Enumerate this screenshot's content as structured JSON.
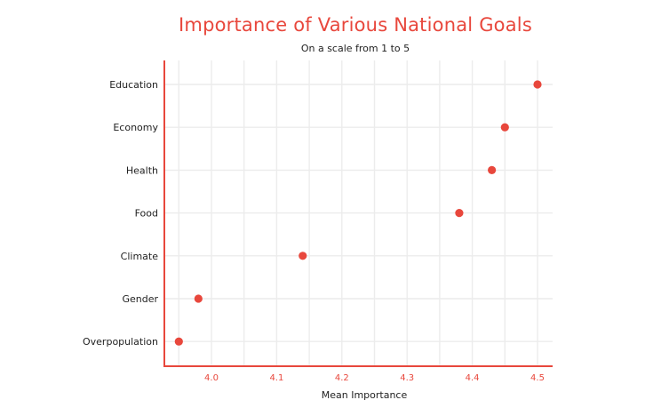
{
  "chart_data": {
    "type": "scatter",
    "title": "Importance of Various National Goals",
    "subtitle": "On a scale from 1 to 5",
    "xlabel": "Mean Importance",
    "ylabel": "",
    "categories": [
      "Education",
      "Economy",
      "Health",
      "Food",
      "Climate",
      "Gender",
      "Overpopulation"
    ],
    "values": [
      4.5,
      4.45,
      4.43,
      4.38,
      4.14,
      3.98,
      3.95
    ],
    "xlim": [
      3.93,
      4.52
    ],
    "xticks": [
      4.0,
      4.1,
      4.2,
      4.3,
      4.4,
      4.5
    ],
    "xtick_labels": [
      "4.0",
      "4.1",
      "4.2",
      "4.3",
      "4.4",
      "4.5"
    ],
    "grid": true,
    "colors": {
      "accent": "#e8473c",
      "grid": "#ececec",
      "text": "#222222"
    }
  }
}
